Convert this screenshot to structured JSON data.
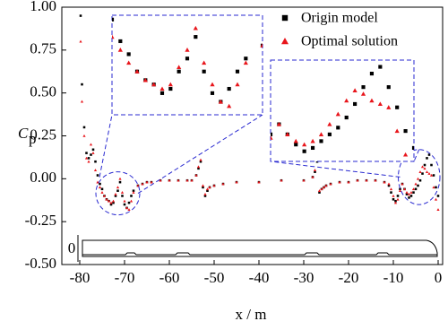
{
  "chart_data": {
    "type": "scatter",
    "xlabel": "x / m",
    "ylabel": "C",
    "ylabel_sub": "p",
    "train_axis_label": "0",
    "xlim": [
      -84,
      1
    ],
    "ylim": [
      -0.5,
      1.0
    ],
    "xticks": [
      -80,
      -70,
      -60,
      -50,
      -40,
      -30,
      -20,
      -10,
      0
    ],
    "yticks": [
      {
        "value": 1.0,
        "label": "1.00"
      },
      {
        "value": 0.75,
        "label": "0.75"
      },
      {
        "value": 0.5,
        "label": "0.50"
      },
      {
        "value": 0.25,
        "label": "0.25"
      },
      {
        "value": 0,
        "label": "0.00"
      },
      {
        "value": -0.25,
        "label": "-0.25"
      },
      {
        "value": -0.5,
        "label": "-0.50"
      }
    ],
    "legend": "upper right",
    "x": [
      -79.8,
      -79.5,
      -79,
      -78.5,
      -78,
      -77.5,
      -77,
      -76.5,
      -76,
      -75.5,
      -75,
      -74.5,
      -74,
      -73.5,
      -73,
      -72.5,
      -72,
      -71.5,
      -71,
      -70.5,
      -70,
      -69.5,
      -69,
      -68.5,
      -68,
      -67,
      -66,
      -65,
      -64,
      -62,
      -60,
      -58,
      -56,
      -55,
      -54,
      -53.5,
      -53,
      -52.5,
      -52,
      -51.5,
      -51,
      -50,
      -48,
      -45,
      -40,
      -35,
      -30,
      -28,
      -27.5,
      -27,
      -26.5,
      -26,
      -25.5,
      -25,
      -24,
      -22,
      -20,
      -18,
      -16,
      -14,
      -12,
      -11,
      -10.5,
      -10,
      -9.5,
      -9,
      -8.5,
      -8,
      -7.5,
      -7,
      -6.5,
      -6,
      -5.5,
      -5,
      -4.5,
      -4,
      -3.5,
      -3,
      -2.5,
      -2,
      -1.5,
      -1,
      -0.5,
      0
    ],
    "series": [
      {
        "name": "Origin model",
        "color": "#000000",
        "marker": "square",
        "values": [
          0.95,
          0.55,
          0.3,
          0.15,
          0.12,
          0.14,
          0.17,
          0.1,
          0.02,
          -0.03,
          -0.06,
          -0.1,
          -0.12,
          -0.13,
          -0.15,
          -0.14,
          -0.1,
          -0.07,
          -0.02,
          -0.1,
          -0.15,
          -0.17,
          -0.14,
          -0.1,
          -0.07,
          -0.04,
          -0.03,
          -0.02,
          -0.02,
          -0.01,
          -0.01,
          -0.01,
          -0.01,
          -0.01,
          0.02,
          0.06,
          0.1,
          -0.05,
          -0.1,
          -0.07,
          -0.05,
          -0.04,
          -0.03,
          -0.02,
          -0.02,
          -0.01,
          -0.01,
          0.01,
          0.04,
          0.1,
          -0.08,
          -0.06,
          -0.05,
          -0.04,
          -0.03,
          -0.02,
          -0.02,
          -0.01,
          -0.01,
          -0.01,
          -0.02,
          -0.04,
          -0.08,
          -0.12,
          -0.13,
          -0.1,
          -0.06,
          -0.03,
          -0.06,
          -0.09,
          -0.11,
          -0.1,
          -0.08,
          -0.06,
          -0.04,
          -0.01,
          0.03,
          0.08,
          0.12,
          0.14,
          0.08,
          0.02,
          -0.05,
          -0.1
        ]
      },
      {
        "name": "Optimal solution",
        "color": "#e8151b",
        "marker": "triangle",
        "values": [
          0.8,
          0.45,
          0.25,
          0.12,
          0.1,
          0.2,
          0.15,
          0.05,
          -0.02,
          -0.05,
          -0.08,
          -0.1,
          -0.12,
          -0.13,
          -0.14,
          -0.13,
          -0.09,
          -0.05,
          0.0,
          -0.08,
          -0.13,
          -0.17,
          -0.18,
          -0.13,
          -0.08,
          -0.04,
          -0.03,
          -0.02,
          -0.02,
          -0.01,
          -0.01,
          -0.01,
          -0.01,
          -0.01,
          0.02,
          0.07,
          0.11,
          -0.04,
          -0.09,
          -0.06,
          -0.05,
          -0.04,
          -0.03,
          -0.02,
          -0.02,
          -0.01,
          -0.01,
          0.01,
          0.05,
          0.11,
          -0.07,
          -0.06,
          -0.05,
          -0.04,
          -0.03,
          -0.02,
          -0.02,
          -0.01,
          -0.01,
          -0.01,
          -0.02,
          -0.03,
          -0.06,
          -0.1,
          -0.14,
          -0.12,
          -0.07,
          -0.03,
          -0.06,
          -0.08,
          -0.09,
          -0.08,
          -0.06,
          -0.03,
          0.0,
          0.04,
          0.07,
          0.06,
          0.04,
          0.03,
          0.02,
          -0.05,
          -0.12,
          -0.18
        ]
      }
    ],
    "insets": [
      {
        "xlim": [
          -76,
          -67
        ],
        "ylim": [
          -0.2,
          0.03
        ]
      },
      {
        "xlim": [
          -8.5,
          0
        ],
        "ylim": [
          -0.14,
          0.16
        ]
      }
    ]
  }
}
